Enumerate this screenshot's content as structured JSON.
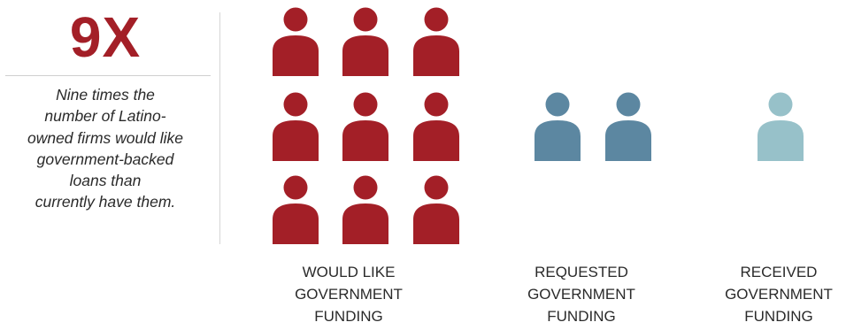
{
  "headline": "9X",
  "caption_lines": [
    "Nine times the",
    "number of Latino-",
    "owned firms would like",
    "government-backed",
    "loans than",
    "currently have them."
  ],
  "chart_data": {
    "type": "pictogram",
    "groups": [
      {
        "label_lines": [
          "WOULD LIKE",
          "GOVERNMENT",
          "FUNDING"
        ],
        "value": 9,
        "color": "#a31f27"
      },
      {
        "label_lines": [
          "REQUESTED",
          "GOVERNMENT",
          "FUNDING"
        ],
        "value": 2,
        "color": "#5c87a1"
      },
      {
        "label_lines": [
          "RECEIVED",
          "GOVERNMENT",
          "FUNDING"
        ],
        "value": 1,
        "color": "#97c1c9"
      }
    ]
  }
}
